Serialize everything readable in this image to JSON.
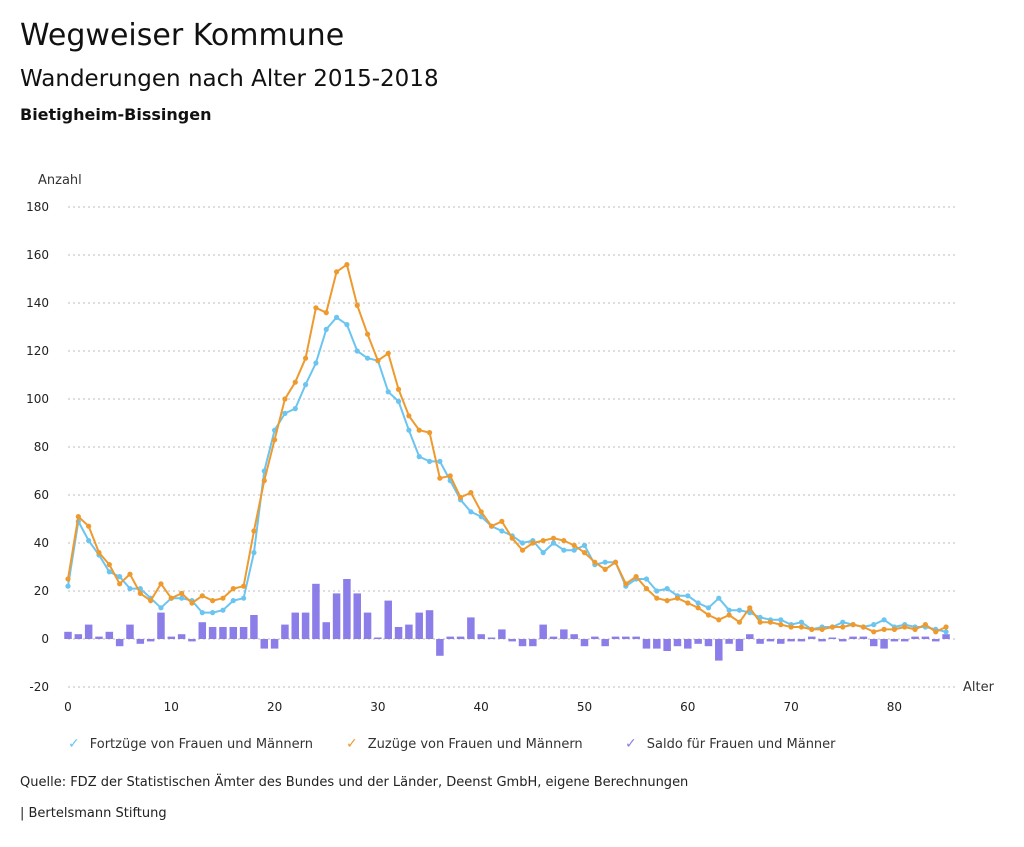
{
  "header": {
    "title": "Wegweiser Kommune",
    "subtitle": "Wanderungen nach Alter 2015-2018",
    "region": "Bietigheim-Bissingen"
  },
  "footer": {
    "source": "Quelle: FDZ der Statistischen Ämter des Bundes und der Länder, Deenst GmbH, eigene Berechnungen",
    "brand": "| Bertelsmann Stiftung"
  },
  "legend": [
    {
      "label": "Fortzüge von Frauen und Männern",
      "color": "#6cc4f0",
      "icon": "check-mark-icon"
    },
    {
      "label": "Zuzüge von Frauen und Männern",
      "color": "#ee9a2f",
      "icon": "check-mark-icon"
    },
    {
      "label": "Saldo für Frauen und Männer",
      "color": "#8c7ee8",
      "icon": "check-mark-icon"
    }
  ],
  "chart_data": {
    "type": "bar+line",
    "title": "Wanderungen nach Alter 2015-2018",
    "xlabel": "Alter",
    "ylabel": "Anzahl",
    "xlim": [
      0,
      85
    ],
    "ylim": [
      -20,
      180
    ],
    "xticks": [
      0,
      10,
      20,
      30,
      40,
      50,
      60,
      70,
      80
    ],
    "yticks": [
      -20,
      0,
      20,
      40,
      60,
      80,
      100,
      120,
      140,
      160,
      180
    ],
    "grid": true,
    "x": [
      0,
      1,
      2,
      3,
      4,
      5,
      6,
      7,
      8,
      9,
      10,
      11,
      12,
      13,
      14,
      15,
      16,
      17,
      18,
      19,
      20,
      21,
      22,
      23,
      24,
      25,
      26,
      27,
      28,
      29,
      30,
      31,
      32,
      33,
      34,
      35,
      36,
      37,
      38,
      39,
      40,
      41,
      42,
      43,
      44,
      45,
      46,
      47,
      48,
      49,
      50,
      51,
      52,
      53,
      54,
      55,
      56,
      57,
      58,
      59,
      60,
      61,
      62,
      63,
      64,
      65,
      66,
      67,
      68,
      69,
      70,
      71,
      72,
      73,
      74,
      75,
      76,
      77,
      78,
      79,
      80,
      81,
      82,
      83,
      84,
      85
    ],
    "series": [
      {
        "name": "Fortzüge von Frauen und Männern",
        "type": "line",
        "color": "#6cc4f0",
        "values": [
          22,
          49,
          41,
          35,
          28,
          26,
          21,
          21,
          17,
          13,
          17,
          17,
          16,
          11,
          11,
          12,
          16,
          17,
          36,
          70,
          87,
          94,
          96,
          106,
          115,
          129,
          134,
          131,
          120,
          117,
          116,
          103,
          99,
          87,
          76,
          74,
          74,
          66,
          58,
          53,
          51,
          47,
          45,
          43,
          40,
          41,
          36,
          40,
          37,
          37,
          39,
          31,
          32,
          32,
          22,
          25,
          25,
          20,
          21,
          18,
          18,
          15,
          13,
          17,
          12,
          12,
          11,
          9,
          8,
          8,
          6,
          7,
          4,
          5,
          5,
          7,
          6,
          5,
          6,
          8,
          5,
          6,
          5,
          5,
          4,
          3
        ]
      },
      {
        "name": "Zuzüge von Frauen und Männern",
        "type": "line",
        "color": "#ee9a2f",
        "values": [
          25,
          51,
          47,
          36,
          31,
          23,
          27,
          19,
          16,
          23,
          17,
          19,
          15,
          18,
          16,
          17,
          21,
          22,
          45,
          66,
          83,
          100,
          107,
          117,
          138,
          136,
          153,
          156,
          139,
          127,
          116,
          119,
          104,
          93,
          87,
          86,
          67,
          68,
          59,
          61,
          53,
          47,
          49,
          42,
          37,
          40,
          41,
          42,
          41,
          39,
          36,
          32,
          29,
          32,
          23,
          26,
          21,
          17,
          16,
          17,
          15,
          13,
          10,
          8,
          10,
          7,
          13,
          7,
          7,
          6,
          5,
          5,
          4,
          4,
          5,
          5,
          6,
          5,
          3,
          4,
          4,
          5,
          4,
          6,
          3,
          5
        ]
      },
      {
        "name": "Saldo für Frauen und Männer",
        "type": "bar",
        "color": "#8c7ee8",
        "values": [
          3,
          2,
          6,
          1,
          3,
          -3,
          6,
          -2,
          -1,
          11,
          1,
          2,
          -1,
          7,
          5,
          5,
          5,
          5,
          10,
          -4,
          -4,
          6,
          11,
          11,
          23,
          7,
          19,
          25,
          19,
          11,
          0,
          16,
          5,
          6,
          11,
          12,
          -7,
          1,
          1,
          9,
          2,
          0,
          4,
          -1,
          -3,
          -3,
          6,
          1,
          4,
          2,
          -3,
          1,
          -3,
          1,
          1,
          1,
          -4,
          -4,
          -5,
          -3,
          -4,
          -2,
          -3,
          -9,
          -2,
          -5,
          2,
          -2,
          -1,
          -2,
          -1,
          -1,
          1,
          -1,
          0,
          -1,
          1,
          1,
          -3,
          -4,
          -1,
          -1,
          1,
          1,
          -1,
          2
        ]
      }
    ]
  }
}
